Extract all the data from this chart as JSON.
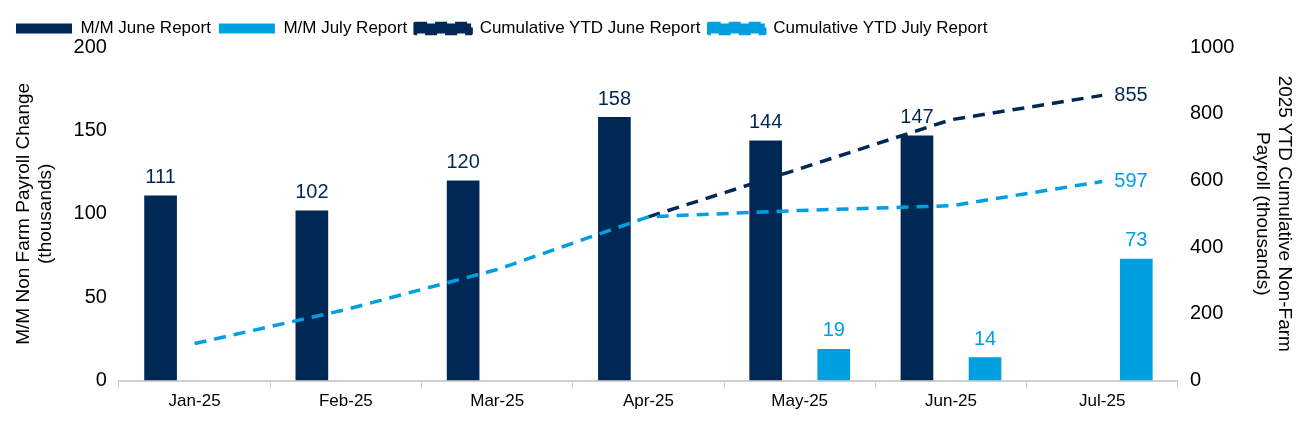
{
  "chart_data": {
    "type": "bar",
    "ylabel": "M/M Non Farm Payroll Change\n(thousands)",
    "y2label": "2025 YTD Cumulative Non-Farm\nPayroll (thousands)",
    "categories": [
      "Jan-25",
      "Feb-25",
      "Mar-25",
      "Apr-25",
      "May-25",
      "Jun-25",
      "Jul-25"
    ],
    "series": [
      {
        "name": "M/M June Report",
        "color": "#002855",
        "values": [
          111,
          102,
          120,
          158,
          144,
          147,
          null
        ],
        "value_labels": [
          "111",
          "102",
          "120",
          "158",
          "144",
          "147",
          null
        ]
      },
      {
        "name": "M/M July Report",
        "color": "#009fdf",
        "values": [
          null,
          null,
          null,
          null,
          19,
          14,
          73
        ],
        "value_labels": [
          null,
          null,
          null,
          null,
          "19",
          "14",
          "73"
        ]
      },
      {
        "name": "Cumulative YTD June Report",
        "type": "line",
        "axis": "y2",
        "color": "#002855",
        "line_style": "dashed",
        "values": [
          null,
          null,
          null,
          491,
          635,
          782,
          855
        ],
        "value_labels": [
          null,
          null,
          null,
          null,
          null,
          null,
          "855"
        ]
      },
      {
        "name": "Cumulative YTD July Report",
        "type": "line",
        "axis": "y2",
        "color": "#009fdf",
        "line_style": "dashed",
        "values": [
          111,
          213,
          333,
          491,
          510,
          524,
          597
        ],
        "value_labels": [
          null,
          null,
          null,
          null,
          null,
          null,
          "597"
        ]
      }
    ],
    "ylim": [
      0,
      200
    ],
    "yticks": [
      0,
      50,
      100,
      150,
      200
    ],
    "y2lim": [
      0,
      1000
    ],
    "y2ticks": [
      0,
      200,
      400,
      600,
      800,
      1000
    ],
    "grid": false,
    "legend": "top left",
    "marker": "none"
  }
}
